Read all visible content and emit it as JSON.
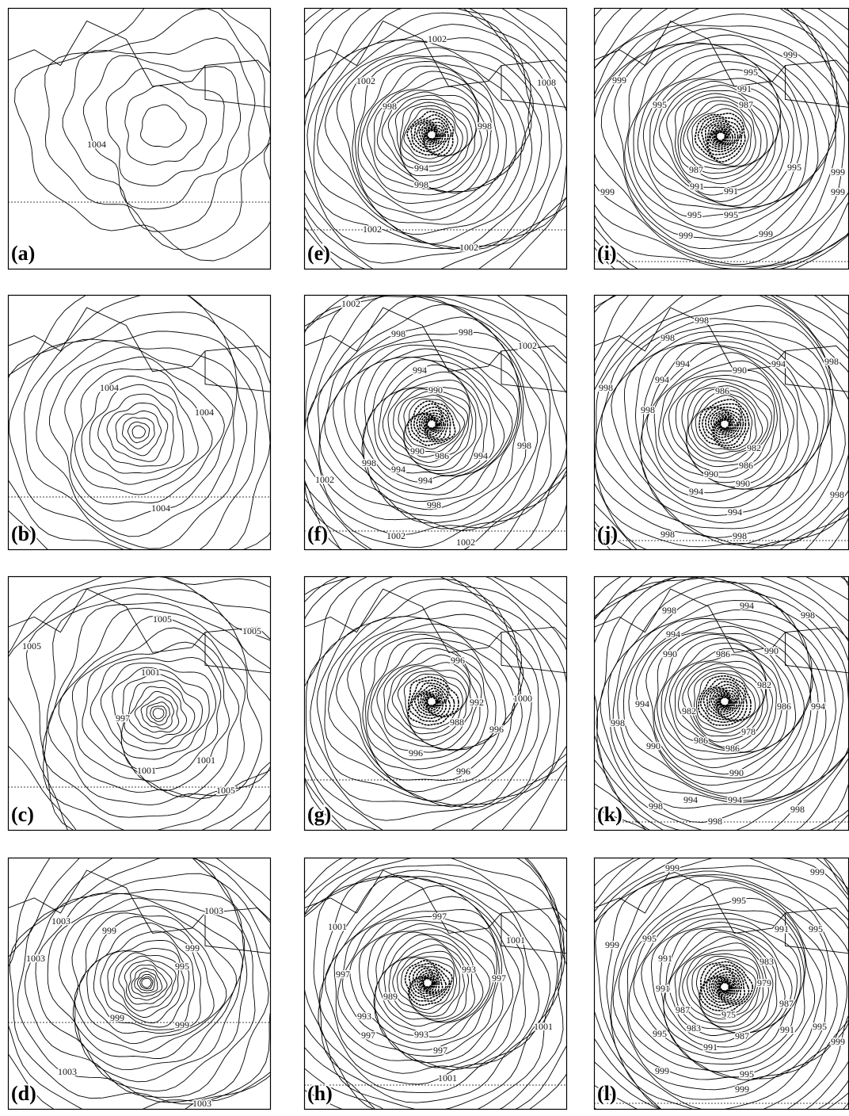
{
  "panels": [
    {
      "label": "(a)",
      "contour_labels": [
        "1004"
      ]
    },
    {
      "label": "(b)",
      "contour_labels": [
        "1004",
        "1004",
        "1004"
      ]
    },
    {
      "label": "(c)",
      "contour_labels": [
        "1005",
        "1005",
        "1005",
        "1001",
        "997",
        "1001",
        "1001",
        "1005"
      ]
    },
    {
      "label": "(d)",
      "contour_labels": [
        "1003",
        "1003",
        "999",
        "1003",
        "999",
        "995",
        "999",
        "999",
        "1003",
        "1003"
      ]
    },
    {
      "label": "(e)",
      "contour_labels": [
        "1002",
        "1002",
        "1008",
        "998",
        "998",
        "994",
        "998",
        "1002",
        "1002"
      ]
    },
    {
      "label": "(f)",
      "contour_labels": [
        "1002",
        "998",
        "998",
        "1002",
        "994",
        "990",
        "990",
        "986",
        "994",
        "998",
        "994",
        "998",
        "1002",
        "994",
        "998",
        "1002",
        "1002"
      ]
    },
    {
      "label": "(g)",
      "contour_labels": [
        "996",
        "992",
        "1000",
        "988",
        "996",
        "996",
        "996"
      ]
    },
    {
      "label": "(h)",
      "contour_labels": [
        "997",
        "1001",
        "1001",
        "993",
        "997",
        "997",
        "989",
        "993",
        "1001",
        "997",
        "993",
        "997",
        "1001"
      ]
    },
    {
      "label": "(i)",
      "contour_labels": [
        "999",
        "995",
        "999",
        "991",
        "995",
        "987",
        "995",
        "987",
        "999",
        "991",
        "991",
        "999",
        "999",
        "995",
        "995",
        "999",
        "999"
      ]
    },
    {
      "label": "(j)",
      "contour_labels": [
        "998",
        "998",
        "994",
        "990",
        "994",
        "998",
        "994",
        "986",
        "998",
        "998",
        "982",
        "986",
        "990",
        "990",
        "994",
        "998",
        "994",
        "998",
        "998"
      ]
    },
    {
      "label": "(k)",
      "contour_labels": [
        "994",
        "998",
        "998",
        "994",
        "990",
        "986",
        "990",
        "982",
        "994",
        "982",
        "986",
        "994",
        "998",
        "978",
        "990",
        "986",
        "986",
        "990",
        "998",
        "994",
        "994",
        "998",
        "998"
      ]
    },
    {
      "label": "(l)",
      "contour_labels": [
        "999",
        "999",
        "995",
        "991",
        "995",
        "995",
        "999",
        "991",
        "983",
        "991",
        "979",
        "987",
        "987",
        "975",
        "983",
        "987",
        "995",
        "991",
        "995",
        "999",
        "991",
        "999",
        "995",
        "999"
      ]
    }
  ]
}
